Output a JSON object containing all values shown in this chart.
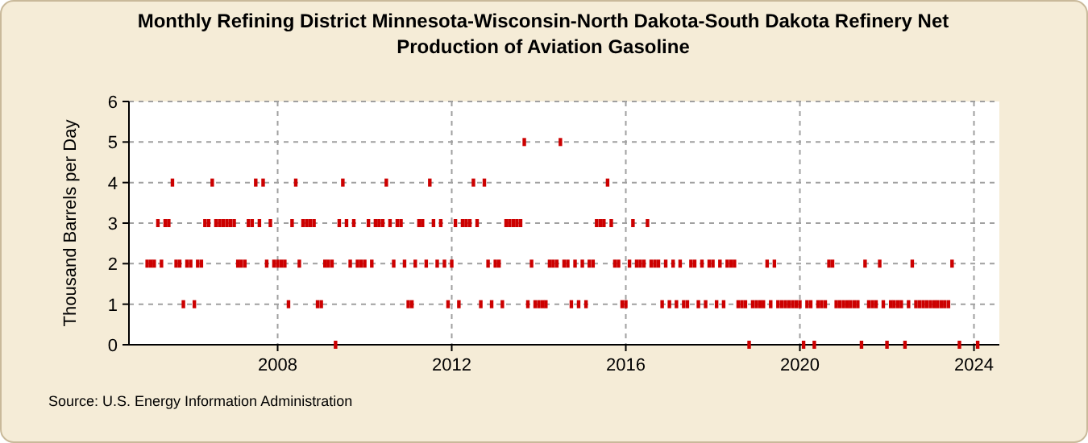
{
  "chart_data": {
    "type": "scatter",
    "title": "Monthly Refining District Minnesota-Wisconsin-North Dakota-South Dakota Refinery Net Production of Aviation Gasoline",
    "ylabel": "Thousand Barrels per Day",
    "annotations": [
      "Source: U.S. Energy Information Administration"
    ],
    "x": [
      "2005-01",
      "2005-02",
      "2005-03",
      "2005-04",
      "2005-05",
      "2005-06",
      "2005-07",
      "2005-08",
      "2005-09",
      "2005-10",
      "2005-11",
      "2005-12",
      "2006-01",
      "2006-02",
      "2006-03",
      "2006-04",
      "2006-05",
      "2006-06",
      "2006-07",
      "2006-08",
      "2006-09",
      "2006-10",
      "2006-11",
      "2006-12",
      "2007-01",
      "2007-02",
      "2007-03",
      "2007-04",
      "2007-05",
      "2007-06",
      "2007-07",
      "2007-08",
      "2007-09",
      "2007-10",
      "2007-11",
      "2007-12",
      "2008-01",
      "2008-02",
      "2008-03",
      "2008-04",
      "2008-05",
      "2008-06",
      "2008-07",
      "2008-08",
      "2008-09",
      "2008-10",
      "2008-11",
      "2008-12",
      "2009-01",
      "2009-02",
      "2009-03",
      "2009-04",
      "2009-05",
      "2009-06",
      "2009-07",
      "2009-08",
      "2009-09",
      "2009-10",
      "2009-11",
      "2009-12",
      "2010-01",
      "2010-02",
      "2010-03",
      "2010-04",
      "2010-05",
      "2010-06",
      "2010-07",
      "2010-08",
      "2010-09",
      "2010-10",
      "2010-11",
      "2010-12",
      "2011-01",
      "2011-02",
      "2011-03",
      "2011-04",
      "2011-05",
      "2011-06",
      "2011-07",
      "2011-08",
      "2011-09",
      "2011-10",
      "2011-11",
      "2011-12",
      "2012-01",
      "2012-02",
      "2012-03",
      "2012-04",
      "2012-05",
      "2012-06",
      "2012-07",
      "2012-08",
      "2012-09",
      "2012-10",
      "2012-11",
      "2012-12",
      "2013-01",
      "2013-02",
      "2013-03",
      "2013-04",
      "2013-05",
      "2013-06",
      "2013-07",
      "2013-08",
      "2013-09",
      "2013-10",
      "2013-11",
      "2013-12",
      "2014-01",
      "2014-02",
      "2014-03",
      "2014-04",
      "2014-05",
      "2014-06",
      "2014-07",
      "2014-08",
      "2014-09",
      "2014-10",
      "2014-11",
      "2014-12",
      "2015-01",
      "2015-02",
      "2015-03",
      "2015-04",
      "2015-05",
      "2015-06",
      "2015-07",
      "2015-08",
      "2015-09",
      "2015-10",
      "2015-11",
      "2015-12",
      "2016-01",
      "2016-02",
      "2016-03",
      "2016-04",
      "2016-05",
      "2016-06",
      "2016-07",
      "2016-08",
      "2016-09",
      "2016-10",
      "2016-11",
      "2016-12",
      "2017-01",
      "2017-02",
      "2017-03",
      "2017-04",
      "2017-05",
      "2017-06",
      "2017-07",
      "2017-08",
      "2017-09",
      "2017-10",
      "2017-11",
      "2017-12",
      "2018-01",
      "2018-02",
      "2018-03",
      "2018-04",
      "2018-05",
      "2018-06",
      "2018-07",
      "2018-08",
      "2018-09",
      "2018-10",
      "2018-11",
      "2018-12",
      "2019-01",
      "2019-02",
      "2019-03",
      "2019-04",
      "2019-05",
      "2019-06",
      "2019-07",
      "2019-08",
      "2019-09",
      "2019-10",
      "2019-11",
      "2019-12",
      "2020-01",
      "2020-02",
      "2020-03",
      "2020-04",
      "2020-05",
      "2020-06",
      "2020-07",
      "2020-08",
      "2020-09",
      "2020-10",
      "2020-11",
      "2020-12",
      "2021-01",
      "2021-02",
      "2021-03",
      "2021-04",
      "2021-05",
      "2021-06",
      "2021-07",
      "2021-08",
      "2021-09",
      "2021-10",
      "2021-11",
      "2021-12",
      "2022-01",
      "2022-02",
      "2022-03",
      "2022-04",
      "2022-05",
      "2022-06",
      "2022-07",
      "2022-08",
      "2022-09",
      "2022-10",
      "2022-11",
      "2022-12",
      "2023-01",
      "2023-02",
      "2023-03",
      "2023-04",
      "2023-05",
      "2023-06",
      "2023-07",
      "2023-09",
      "2024-02"
    ],
    "series": [
      {
        "color": "#cc0000",
        "values": [
          2,
          2,
          2,
          3,
          2,
          3,
          3,
          4,
          2,
          2,
          1,
          2,
          2,
          1,
          2,
          2,
          3,
          3,
          4,
          3,
          3,
          3,
          3,
          3,
          3,
          2,
          2,
          2,
          3,
          3,
          4,
          3,
          4,
          2,
          3,
          2,
          2,
          2,
          2,
          1,
          3,
          4,
          2,
          3,
          3,
          3,
          3,
          1,
          1,
          2,
          2,
          2,
          0,
          3,
          4,
          3,
          2,
          3,
          2,
          2,
          2,
          3,
          2,
          3,
          3,
          3,
          4,
          3,
          2,
          3,
          3,
          2,
          1,
          1,
          2,
          3,
          3,
          2,
          4,
          3,
          2,
          3,
          2,
          1,
          2,
          3,
          1,
          3,
          3,
          3,
          4,
          3,
          1,
          4,
          2,
          1,
          2,
          2,
          1,
          3,
          3,
          3,
          3,
          3,
          5,
          1,
          2,
          1,
          1,
          1,
          1,
          2,
          2,
          2,
          5,
          2,
          2,
          1,
          2,
          1,
          2,
          1,
          2,
          2,
          3,
          3,
          3,
          4,
          3,
          2,
          2,
          1,
          1,
          2,
          3,
          2,
          2,
          2,
          3,
          2,
          2,
          2,
          1,
          2,
          1,
          2,
          1,
          2,
          1,
          1,
          2,
          2,
          1,
          2,
          1,
          2,
          2,
          1,
          2,
          1,
          2,
          2,
          2,
          1,
          1,
          1,
          0,
          1,
          1,
          1,
          1,
          2,
          1,
          2,
          1,
          1,
          1,
          1,
          1,
          1,
          1,
          0,
          1,
          1,
          0,
          1,
          1,
          1,
          2,
          2,
          1,
          1,
          1,
          1,
          1,
          1,
          1,
          0,
          2,
          1,
          1,
          1,
          2,
          1,
          0,
          1,
          1,
          1,
          1,
          0,
          1,
          2,
          1,
          1,
          1,
          1,
          1,
          1,
          1,
          1,
          1,
          1,
          2,
          0,
          0
        ]
      }
    ],
    "xlim": [
      "2004-08",
      "2024-08"
    ],
    "xticks": [
      {
        "value": "2008",
        "label": "2008"
      },
      {
        "value": "2012",
        "label": "2012"
      },
      {
        "value": "2016",
        "label": "2016"
      },
      {
        "value": "2020",
        "label": "2020"
      },
      {
        "value": "2024",
        "label": "2024"
      }
    ],
    "ylim": [
      0,
      6
    ],
    "yticks": [
      0,
      1,
      2,
      3,
      4,
      5,
      6
    ],
    "grid": true,
    "marker": "square"
  }
}
